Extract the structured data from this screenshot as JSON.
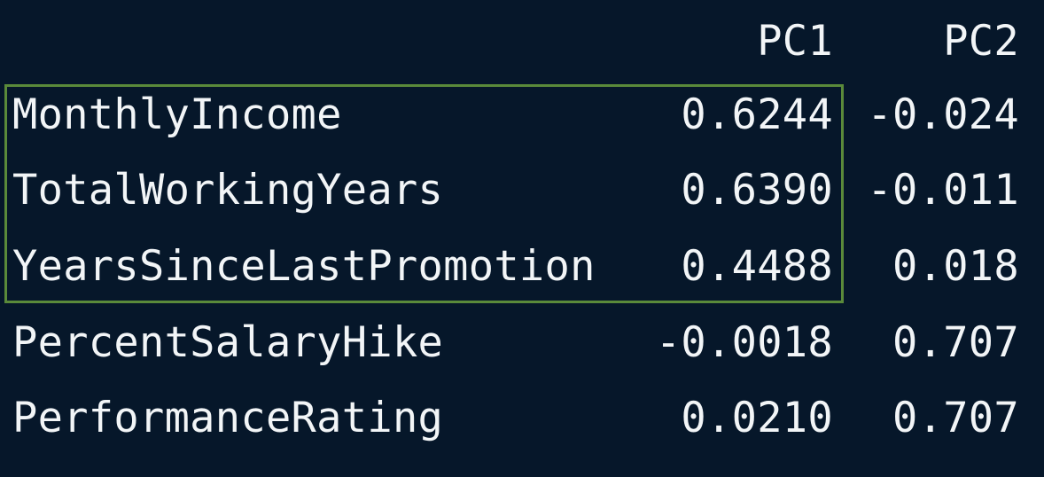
{
  "table": {
    "columns": [
      "PC1",
      "PC2"
    ],
    "rows": [
      {
        "variable": "MonthlyIncome",
        "pc1": "0.6244",
        "pc2": "-0.024"
      },
      {
        "variable": "TotalWorkingYears",
        "pc1": "0.6390",
        "pc2": "-0.011"
      },
      {
        "variable": "YearsSinceLastPromotion",
        "pc1": "0.4488",
        "pc2": "0.018"
      },
      {
        "variable": "PercentSalaryHike",
        "pc1": "-0.0018",
        "pc2": "0.707"
      },
      {
        "variable": "PerformanceRating",
        "pc1": "0.0210",
        "pc2": "0.707"
      }
    ]
  },
  "highlight": {
    "color": "#5A8A3A",
    "rows_highlighted": [
      "MonthlyIncome",
      "TotalWorkingYears",
      "YearsSinceLastPromotion"
    ]
  },
  "colors": {
    "background": "#06172A",
    "text": "#F2F5F7"
  }
}
